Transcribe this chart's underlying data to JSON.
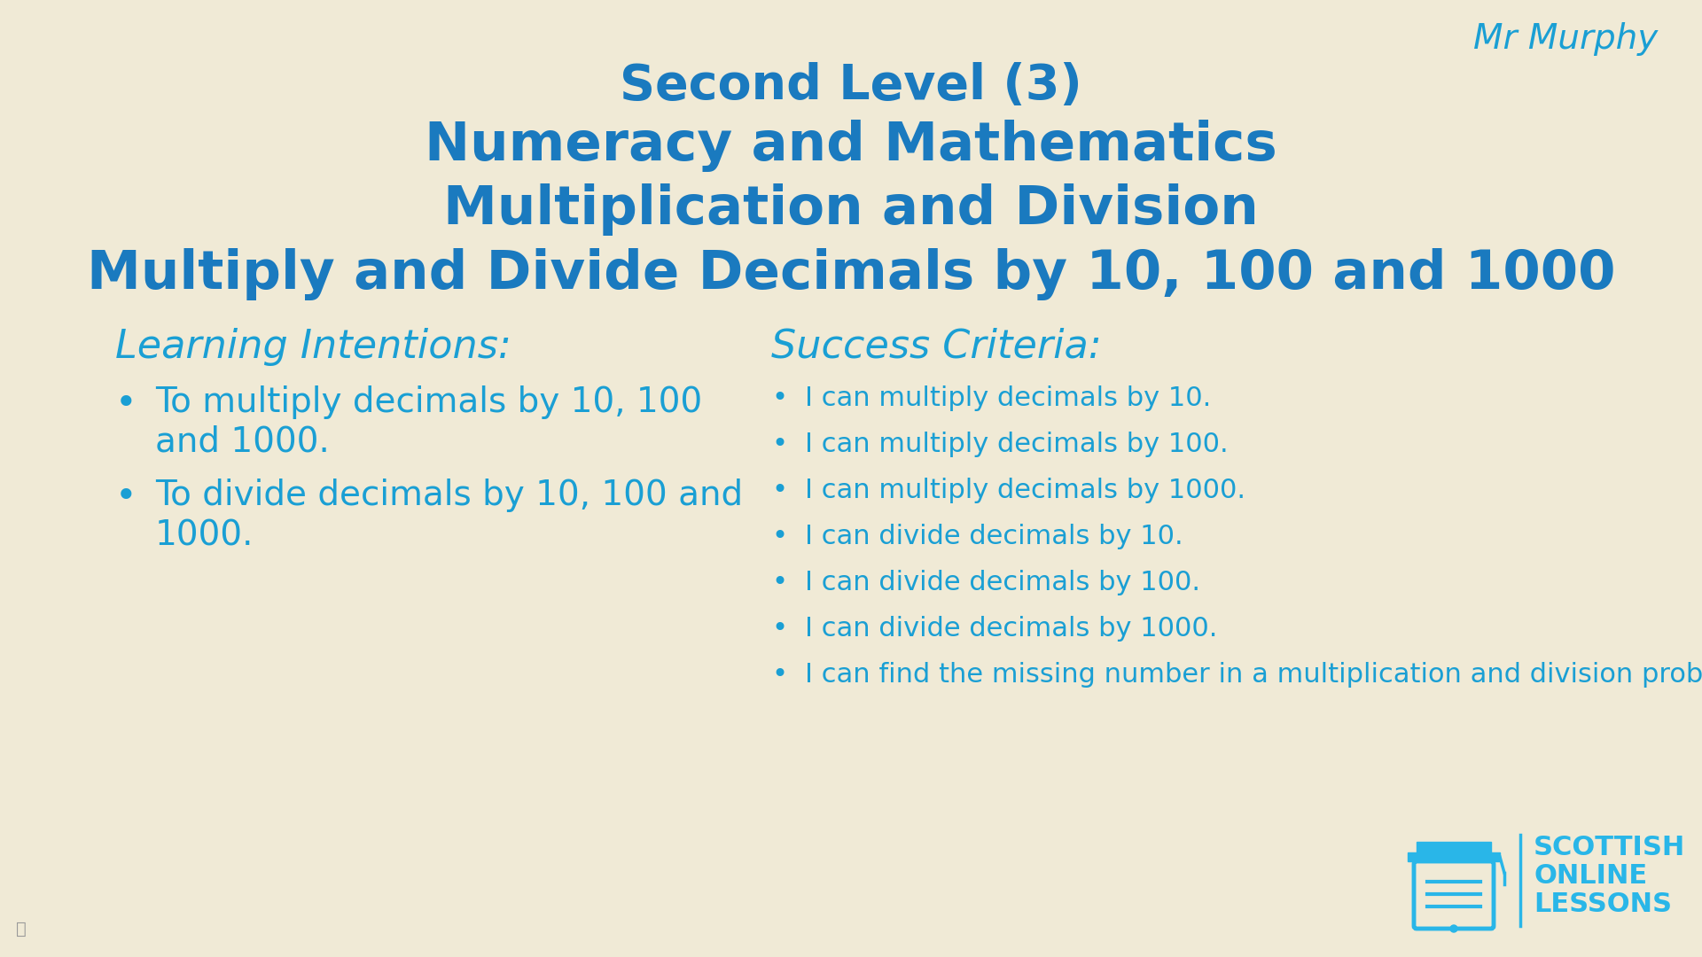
{
  "background_color": "#f0ead6",
  "text_color": "#1a9fd4",
  "title_color": "#1a7abf",
  "line1": "Second Level (3)",
  "line2": "Numeracy and Mathematics",
  "line3": "Multiplication and Division",
  "line4": "Multiply and Divide Decimals by 10, 100 and 1000",
  "mr_murphy": "Mr Murphy",
  "li_header": "Learning Intentions:",
  "li_item1_line1": "To multiply decimals by 10, 100",
  "li_item1_line2": "and 1000.",
  "li_item2_line1": "To divide decimals by 10, 100 and",
  "li_item2_line2": "1000.",
  "sc_header": "Success Criteria:",
  "sc_items": [
    "I can multiply decimals by 10.",
    "I can multiply decimals by 100.",
    "I can multiply decimals by 1000.",
    "I can divide decimals by 10.",
    "I can divide decimals by 100.",
    "I can divide decimals by 1000.",
    "I can find the missing number in a multiplication and division problem."
  ]
}
